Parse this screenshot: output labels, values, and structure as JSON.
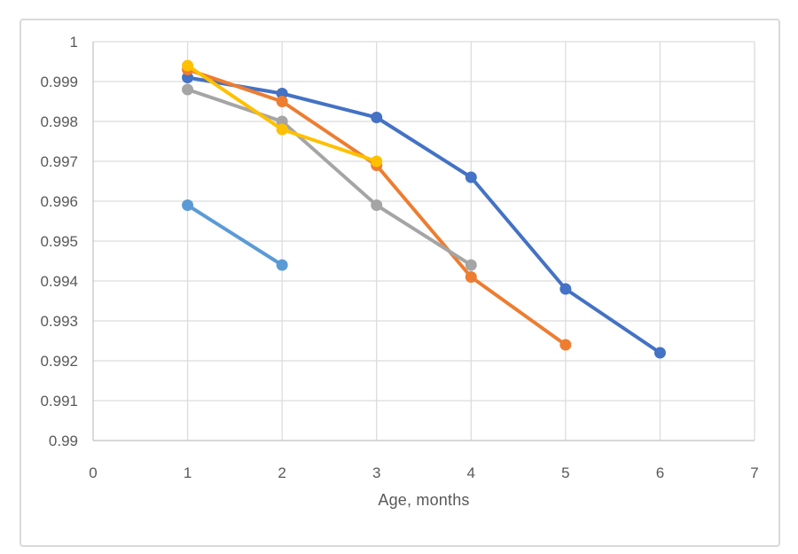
{
  "chart_data": {
    "type": "line",
    "title": "",
    "xlabel": "Age, months",
    "ylabel": "",
    "xlim": [
      0,
      7
    ],
    "ylim": [
      0.99,
      1.0
    ],
    "grid": true,
    "legend": "none",
    "x_ticks": [
      0,
      1,
      2,
      3,
      4,
      5,
      6,
      7
    ],
    "x_tick_labels": [
      "0",
      "1",
      "2",
      "3",
      "4",
      "5",
      "6",
      "7"
    ],
    "y_ticks": [
      1.0,
      0.999,
      0.998,
      0.997,
      0.996,
      0.995,
      0.994,
      0.993,
      0.992,
      0.991,
      0.99
    ],
    "y_tick_labels": [
      "1",
      "0.999",
      "0.998",
      "0.997",
      "0.996",
      "0.995",
      "0.994",
      "0.993",
      "0.992",
      "0.991",
      "0.99"
    ],
    "series": [
      {
        "name": "dark-blue",
        "color": "#4472C4",
        "x": [
          1,
          2,
          3,
          4,
          5,
          6
        ],
        "y": [
          0.9991,
          0.9987,
          0.9981,
          0.9966,
          0.9938,
          0.9922
        ]
      },
      {
        "name": "orange",
        "color": "#ED7D31",
        "x": [
          1,
          2,
          3,
          4,
          5
        ],
        "y": [
          0.9993,
          0.9985,
          0.9969,
          0.9941,
          0.9924
        ]
      },
      {
        "name": "gray",
        "color": "#A5A5A5",
        "x": [
          1,
          2,
          3,
          4
        ],
        "y": [
          0.9988,
          0.998,
          0.9959,
          0.9944
        ]
      },
      {
        "name": "yellow",
        "color": "#FFC000",
        "x": [
          1,
          2,
          3
        ],
        "y": [
          0.9994,
          0.9978,
          0.997
        ]
      },
      {
        "name": "light-blue",
        "color": "#5B9BD5",
        "x": [
          1,
          2
        ],
        "y": [
          0.9959,
          0.9944
        ]
      }
    ]
  },
  "style": {
    "background": "#FFFFFF",
    "frame_border": "#D9D9D9",
    "grid_color": "#DCDCDC",
    "axis_color": "#C6C6C6",
    "tick_color": "#595959",
    "axis_title_color": "#595959"
  }
}
